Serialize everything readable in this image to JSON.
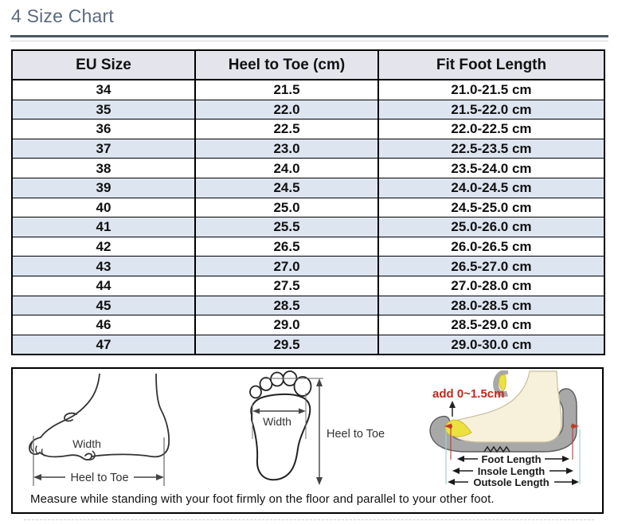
{
  "page": {
    "title": "4 Size Chart"
  },
  "colors": {
    "title_text": "#5b6a7e",
    "title_rule": "#4a5766",
    "table_border": "#000000",
    "header_bg": "#e4e4ec",
    "stripe_bg": "#dde5f1",
    "allowance_red": "#c5281c"
  },
  "table": {
    "headers": [
      "EU Size",
      "Heel to Toe (cm)",
      "Fit Foot Length"
    ],
    "rows": [
      [
        "34",
        "21.5",
        "21.0-21.5 cm"
      ],
      [
        "35",
        "22.0",
        "21.5-22.0 cm"
      ],
      [
        "36",
        "22.5",
        "22.0-22.5 cm"
      ],
      [
        "37",
        "23.0",
        "22.5-23.5 cm"
      ],
      [
        "38",
        "24.0",
        "23.5-24.0 cm"
      ],
      [
        "39",
        "24.5",
        "24.0-24.5 cm"
      ],
      [
        "40",
        "25.0",
        "24.5-25.0 cm"
      ],
      [
        "41",
        "25.5",
        "25.0-26.0 cm"
      ],
      [
        "42",
        "26.5",
        "26.0-26.5 cm"
      ],
      [
        "43",
        "27.0",
        "26.5-27.0 cm"
      ],
      [
        "44",
        "27.5",
        "27.0-28.0 cm"
      ],
      [
        "45",
        "28.5",
        "28.0-28.5 cm"
      ],
      [
        "46",
        "29.0",
        "28.5-29.0 cm"
      ],
      [
        "47",
        "29.5",
        "29.0-30.0 cm"
      ]
    ]
  },
  "figure": {
    "side_view": {
      "width_label": "Width",
      "length_label": "Heel to Toe"
    },
    "top_view": {
      "width_label": "Width",
      "length_label": "Heel to Toe"
    },
    "shoe_view": {
      "allowance_label": "add 0~1.5cm",
      "measures": [
        "Foot Length",
        "Insole Length",
        "Outsole Length"
      ]
    },
    "caption": "Measure while standing with your foot firmly on the floor and parallel to your other foot."
  },
  "chart_data": {
    "type": "table",
    "title": "4 Size Chart",
    "columns": [
      "EU Size",
      "Heel to Toe (cm)",
      "Fit Foot Length"
    ],
    "rows": [
      [
        "34",
        "21.5",
        "21.0-21.5 cm"
      ],
      [
        "35",
        "22.0",
        "21.5-22.0 cm"
      ],
      [
        "36",
        "22.5",
        "22.0-22.5 cm"
      ],
      [
        "37",
        "23.0",
        "22.5-23.5 cm"
      ],
      [
        "38",
        "24.0",
        "23.5-24.0 cm"
      ],
      [
        "39",
        "24.5",
        "24.0-24.5 cm"
      ],
      [
        "40",
        "25.0",
        "24.5-25.0 cm"
      ],
      [
        "41",
        "25.5",
        "25.0-26.0 cm"
      ],
      [
        "42",
        "26.5",
        "26.0-26.5 cm"
      ],
      [
        "43",
        "27.0",
        "26.5-27.0 cm"
      ],
      [
        "44",
        "27.5",
        "27.0-28.0 cm"
      ],
      [
        "45",
        "28.5",
        "28.0-28.5 cm"
      ],
      [
        "46",
        "29.0",
        "28.5-29.0 cm"
      ],
      [
        "47",
        "29.5",
        "29.0-30.0 cm"
      ]
    ]
  }
}
